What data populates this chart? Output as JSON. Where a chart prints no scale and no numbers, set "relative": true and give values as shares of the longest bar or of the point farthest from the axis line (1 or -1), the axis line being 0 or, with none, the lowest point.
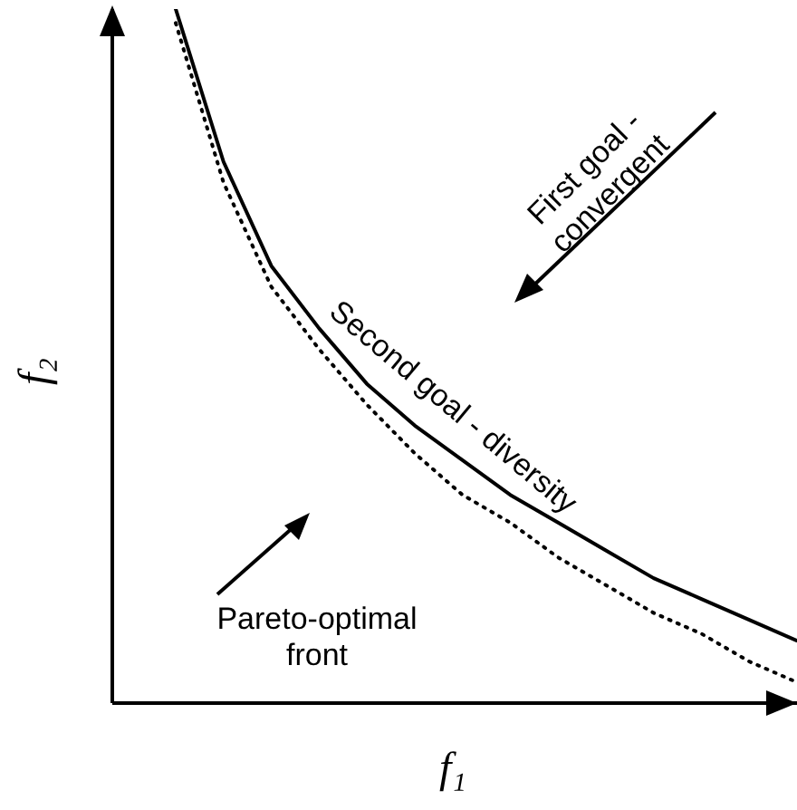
{
  "chart_data": {
    "type": "line",
    "relative": true,
    "xlabel": "f₁",
    "ylabel": "f₂",
    "marker": "none",
    "categories": [
      null,
      null,
      null,
      null,
      null,
      null,
      null,
      null,
      null,
      null,
      null,
      null,
      null,
      null
    ],
    "series": [
      {
        "color": "#000000",
        "line_style": "solid",
        "values": [
          1,
          0.78,
          0.63,
          0.54,
          0.46,
          0.4,
          0.35,
          0.3,
          0.26,
          0.22,
          0.18,
          0.15,
          0.12,
          0.09
        ]
      },
      {
        "color": "#000000",
        "line_style": "dotted",
        "values": [
          0.98,
          0.75,
          0.6,
          0.51,
          0.43,
          0.36,
          0.3,
          0.26,
          0.21,
          0.17,
          0.13,
          0.1,
          0.06,
          0.03
        ]
      }
    ],
    "annotations": [
      "First goal - convergent",
      "Second goal - diversity",
      "Pareto-optimal front"
    ]
  }
}
